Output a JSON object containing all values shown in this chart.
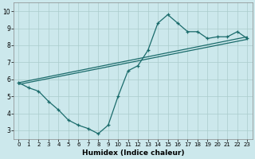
{
  "title": "",
  "xlabel": "Humidex (Indice chaleur)",
  "ylabel": "",
  "xlim": [
    -0.5,
    23.5
  ],
  "ylim": [
    2.5,
    10.5
  ],
  "xticks": [
    0,
    1,
    2,
    3,
    4,
    5,
    6,
    7,
    8,
    9,
    10,
    11,
    12,
    13,
    14,
    15,
    16,
    17,
    18,
    19,
    20,
    21,
    22,
    23
  ],
  "yticks": [
    3,
    4,
    5,
    6,
    7,
    8,
    9,
    10
  ],
  "bg_color": "#cce8ec",
  "grid_color": "#aacccc",
  "line_color": "#1a6b6b",
  "line1_x": [
    0,
    1,
    2,
    3,
    4,
    5,
    6,
    7,
    8,
    9,
    10,
    11,
    12,
    13,
    14,
    15,
    16,
    17,
    18,
    19,
    20,
    21,
    22,
    23
  ],
  "line1_y": [
    5.8,
    5.5,
    5.3,
    4.7,
    4.2,
    3.6,
    3.3,
    3.1,
    2.8,
    3.3,
    5.0,
    6.5,
    6.8,
    7.7,
    9.3,
    9.8,
    9.3,
    8.8,
    8.8,
    8.4,
    8.5,
    8.5,
    8.8,
    8.4
  ],
  "line2_x": [
    0,
    23
  ],
  "line2_y": [
    5.8,
    8.5
  ],
  "line3_x": [
    0,
    23
  ],
  "line3_y": [
    5.7,
    8.35
  ]
}
